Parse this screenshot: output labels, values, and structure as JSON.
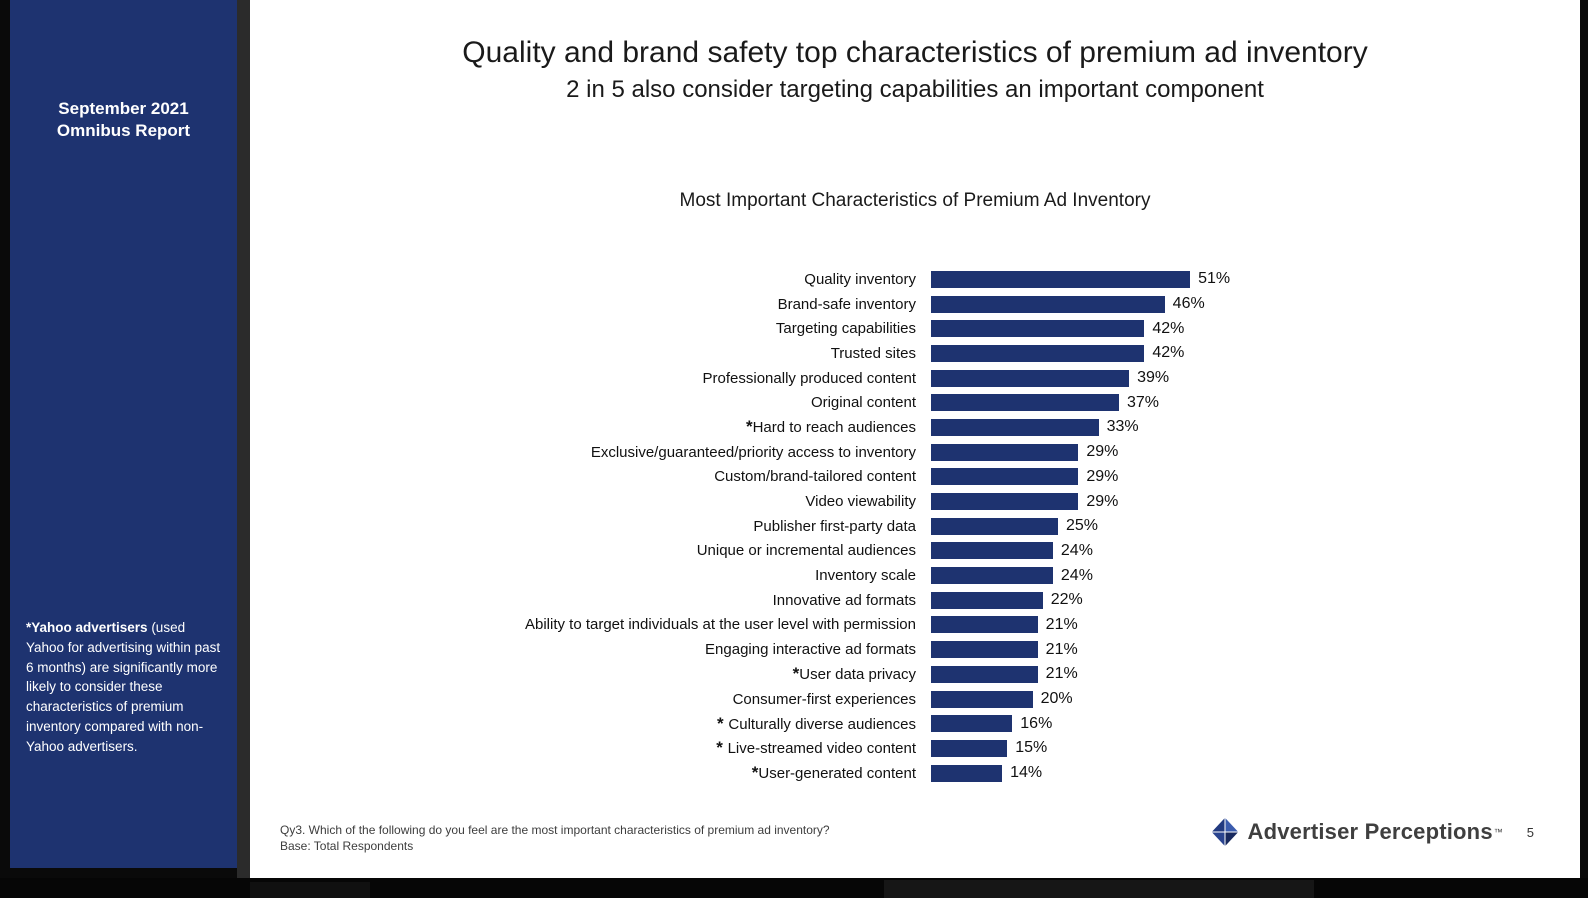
{
  "sidebar": {
    "report_line1": "September 2021",
    "report_line2": "Omnibus Report",
    "footnote_bold": "*Yahoo advertisers",
    "footnote_rest": " (used Yahoo for advertising within past 6 months) are significantly more likely to consider these characteristics of premium inventory compared with non-Yahoo advertisers."
  },
  "header": {
    "title": "Quality and brand safety top characteristics of premium ad inventory",
    "subtitle": "2 in 5 also consider targeting capabilities an important component"
  },
  "chart_data": {
    "type": "bar",
    "orientation": "horizontal",
    "title": "Most Important Characteristics of Premium Ad Inventory",
    "value_suffix": "%",
    "xlim": [
      0,
      55
    ],
    "grid": false,
    "legend": false,
    "bar_color": "#1e3370",
    "items": [
      {
        "prefix": "",
        "label": "Quality inventory",
        "value": 51
      },
      {
        "prefix": "",
        "label": "Brand-safe inventory",
        "value": 46
      },
      {
        "prefix": "",
        "label": "Targeting capabilities",
        "value": 42
      },
      {
        "prefix": "",
        "label": "Trusted sites",
        "value": 42
      },
      {
        "prefix": "",
        "label": "Professionally produced content",
        "value": 39
      },
      {
        "prefix": "",
        "label": "Original content",
        "value": 37
      },
      {
        "prefix": "*",
        "label": "Hard to reach audiences",
        "value": 33
      },
      {
        "prefix": "",
        "label": "Exclusive/guaranteed/priority access to inventory",
        "value": 29
      },
      {
        "prefix": "",
        "label": "Custom/brand-tailored content",
        "value": 29
      },
      {
        "prefix": "",
        "label": "Video viewability",
        "value": 29
      },
      {
        "prefix": "",
        "label": "Publisher first-party data",
        "value": 25
      },
      {
        "prefix": "",
        "label": "Unique or incremental audiences",
        "value": 24
      },
      {
        "prefix": "",
        "label": "Inventory scale",
        "value": 24
      },
      {
        "prefix": "",
        "label": "Innovative ad formats",
        "value": 22
      },
      {
        "prefix": "",
        "label": "Ability to target individuals at the user level with permission",
        "value": 21
      },
      {
        "prefix": "",
        "label": "Engaging interactive ad formats",
        "value": 21
      },
      {
        "prefix": "*",
        "label": "User data privacy",
        "value": 21
      },
      {
        "prefix": "",
        "label": "Consumer-first experiences",
        "value": 20
      },
      {
        "prefix": "* ",
        "label": "Culturally diverse audiences",
        "value": 16
      },
      {
        "prefix": "* ",
        "label": "Live-streamed video content",
        "value": 15
      },
      {
        "prefix": "*",
        "label": "User-generated content",
        "value": 14
      }
    ]
  },
  "footer": {
    "question": "Qy3. Which of the following do you feel are the most important characteristics of premium ad inventory?",
    "base": "Base: Total Respondents",
    "page_number": "5",
    "logo_text": "Advertiser Perceptions",
    "logo_tm": "™"
  },
  "colors": {
    "sidebar_bg": "#1e3370",
    "bar": "#1e3370",
    "separator": "#2b2b2b"
  }
}
